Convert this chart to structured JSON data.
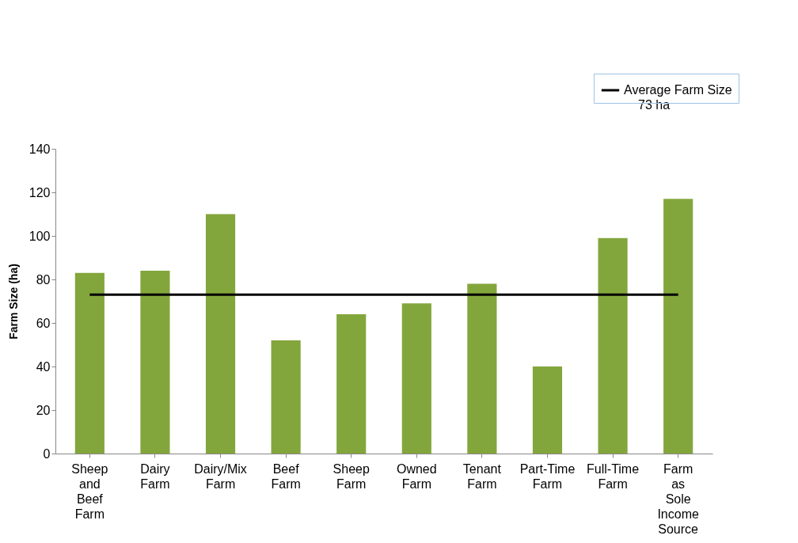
{
  "chart_data": {
    "type": "bar",
    "ylabel": "Farm Size (ha)",
    "categories": [
      "Sheep and Beef Farm",
      "Dairy Farm",
      "Dairy/Mix Farm",
      "Beef Farm",
      "Sheep Farm",
      "Owned Farm",
      "Tenant Farm",
      "Part-Time Farm",
      "Full-Time Farm",
      "Farm as Sole Income Source"
    ],
    "series": [
      {
        "color": "#83a63c",
        "values": [
          83,
          84,
          110,
          52,
          64,
          69,
          78,
          40,
          99,
          117
        ]
      },
      {
        "type": "line",
        "name": "Average Farm Size",
        "color": "#000000",
        "values": [
          73,
          73,
          73,
          73,
          73,
          73,
          73,
          73,
          73,
          73
        ]
      }
    ],
    "annotations": [
      "73 ha"
    ],
    "ylim": [
      0,
      140
    ],
    "yticks": [
      0,
      20,
      40,
      60,
      80,
      100,
      120,
      140
    ],
    "grid": false,
    "legend": "top right",
    "marker": "none",
    "line_style": "solid"
  }
}
